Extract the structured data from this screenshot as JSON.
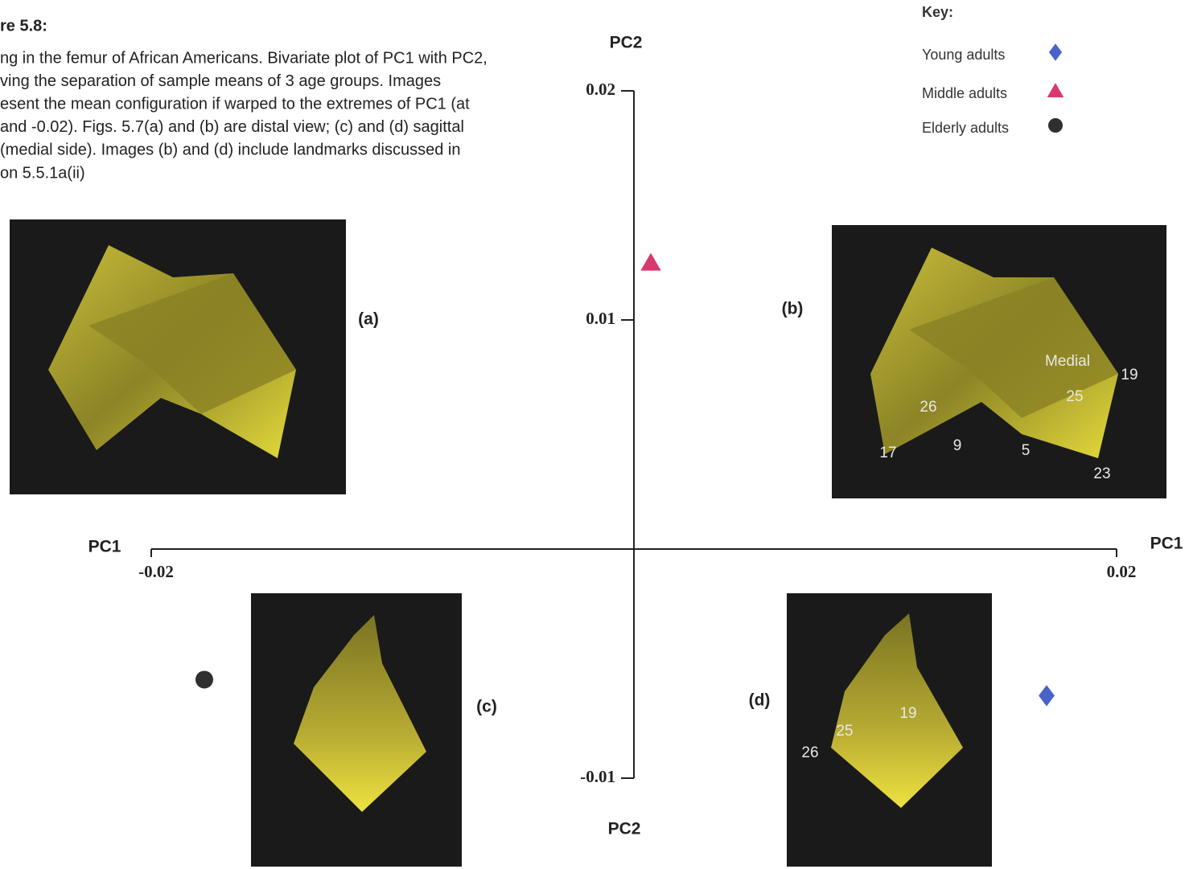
{
  "caption": {
    "heading": "re 5.8:",
    "lines": [
      "ng in the femur of African Americans. Bivariate plot of PC1 with PC2,",
      "ving the separation of sample means of 3 age groups. Images",
      "esent the mean configuration if warped to the extremes of PC1 (at",
      "and -0.02). Figs. 5.7(a) and (b) are distal view; (c) and (d) sagittal",
      "(medial side). Images (b) and (d) include landmarks discussed in",
      "on 5.5.1a(ii)"
    ]
  },
  "chart_data": {
    "type": "scatter",
    "x_label": "PC1",
    "y_label": "PC2",
    "xlim": [
      -0.02,
      0.02
    ],
    "xticks": [
      -0.02,
      0.02
    ],
    "ylim": [
      -0.01,
      0.02
    ],
    "yticks": [
      -0.01,
      0.01,
      0.02
    ],
    "legend": {
      "title": "Key:",
      "position": "upper right"
    },
    "series": [
      {
        "name": "Young adults",
        "color": "#4a63c8",
        "marker": "diamond",
        "x": [
          0.0171
        ],
        "values": [
          -0.0064
        ]
      },
      {
        "name": "Middle adults",
        "color": "#d8386e",
        "marker": "triangle",
        "x": [
          0.0007
        ],
        "values": [
          0.0125
        ]
      },
      {
        "name": "Elderly adults",
        "color": "#2f2f2f",
        "marker": "circle",
        "x": [
          -0.0178
        ],
        "values": [
          -0.0057
        ]
      }
    ]
  },
  "panels": [
    {
      "label": "(a)",
      "landmarks": []
    },
    {
      "label": "(b)",
      "landmarks": [
        "Medial",
        "19",
        "25",
        "26",
        "17",
        "9",
        "5",
        "23"
      ]
    },
    {
      "label": "(c)",
      "landmarks": []
    },
    {
      "label": "(d)",
      "landmarks": [
        "19",
        "25",
        "26"
      ]
    }
  ]
}
